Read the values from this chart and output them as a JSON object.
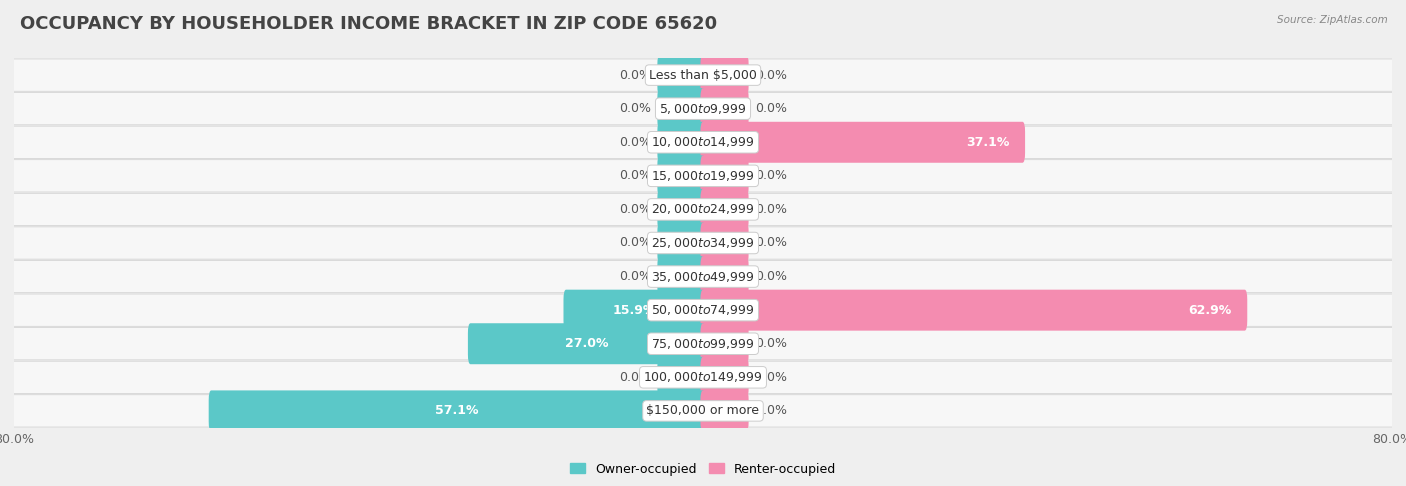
{
  "title": "OCCUPANCY BY HOUSEHOLDER INCOME BRACKET IN ZIP CODE 65620",
  "source": "Source: ZipAtlas.com",
  "categories": [
    "Less than $5,000",
    "$5,000 to $9,999",
    "$10,000 to $14,999",
    "$15,000 to $19,999",
    "$20,000 to $24,999",
    "$25,000 to $34,999",
    "$35,000 to $49,999",
    "$50,000 to $74,999",
    "$75,000 to $99,999",
    "$100,000 to $149,999",
    "$150,000 or more"
  ],
  "owner_values": [
    0.0,
    0.0,
    0.0,
    0.0,
    0.0,
    0.0,
    0.0,
    15.9,
    27.0,
    0.0,
    57.1
  ],
  "renter_values": [
    0.0,
    0.0,
    37.1,
    0.0,
    0.0,
    0.0,
    0.0,
    62.9,
    0.0,
    0.0,
    0.0
  ],
  "owner_color": "#5bc8c8",
  "renter_color": "#f48cb0",
  "background_color": "#efefef",
  "row_bg_light": "#f7f7f7",
  "row_bg_dark": "#ebebeb",
  "axis_max": 80.0,
  "stub_size": 5.0,
  "title_fontsize": 13,
  "label_fontsize": 9,
  "tick_fontsize": 9,
  "category_fontsize": 9,
  "legend_fontsize": 9
}
